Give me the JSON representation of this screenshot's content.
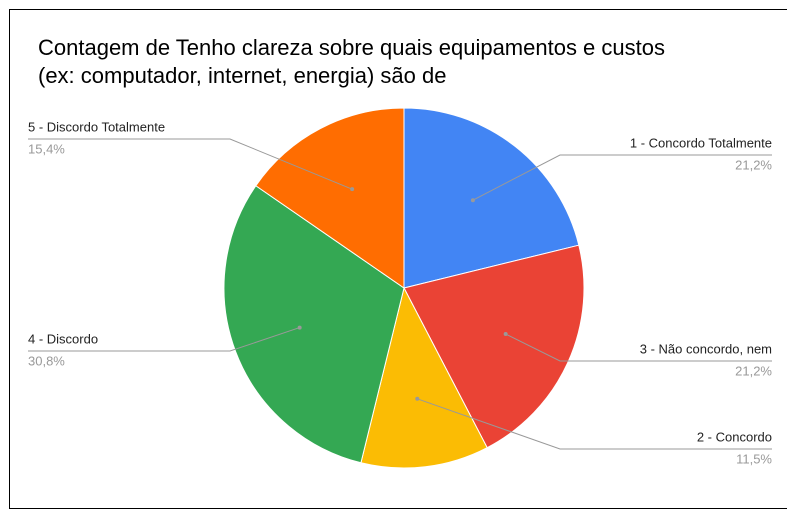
{
  "chart_data": {
    "type": "pie",
    "title": "Contagem de Tenho clareza sobre quais equipamentos e custos (ex: computador, internet, energia) são de",
    "categories": [
      "1 - Concordo Totalmente",
      "3 - Não concordo, nem",
      "2 - Concordo",
      "4 - Discordo",
      "5 - Discordo Totalmente"
    ],
    "values": [
      21.2,
      21.2,
      11.5,
      30.8,
      15.4
    ],
    "value_labels": [
      "21,2%",
      "21,2%",
      "11,5%",
      "30,8%",
      "15,4%"
    ],
    "colors": [
      "#4285f4",
      "#ea4335",
      "#fbbc04",
      "#34a853",
      "#ff6d01"
    ]
  }
}
